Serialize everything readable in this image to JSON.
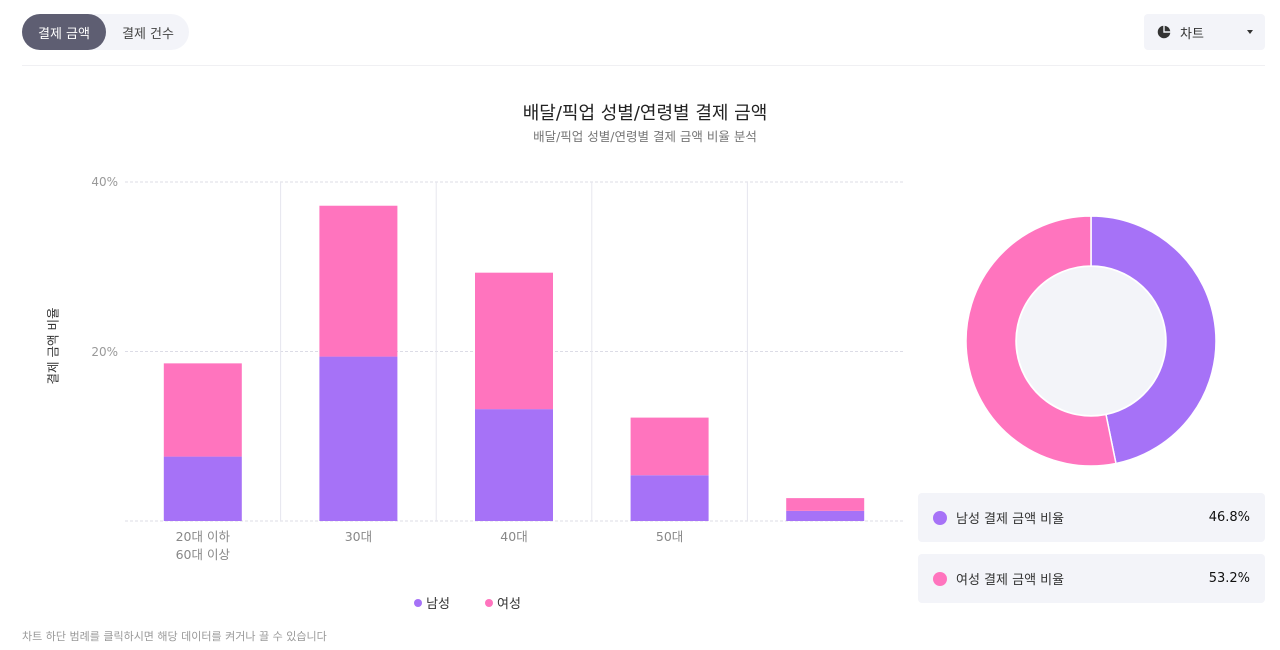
{
  "toggle": {
    "options": [
      {
        "label": "결제 금액",
        "active": true
      },
      {
        "label": "결제 건수",
        "active": false
      }
    ]
  },
  "chart_selector": {
    "icon": "pie-chart-icon",
    "label": "차트"
  },
  "colors": {
    "male": "#a672f7",
    "female": "#ff74be",
    "grid": "#dcdce6",
    "donut_hole": "#f3f4f9"
  },
  "chart_data": [
    {
      "type": "bar",
      "stacked": true,
      "title": "배달/픽업 성별/연령별 결제 금액",
      "subtitle": "배달/픽업 성별/연령별 결제 금액 비율 분석",
      "xlabel": "",
      "ylabel": "결제 금액 비율",
      "ylim": [
        0,
        40
      ],
      "yticks": [
        "20%",
        "40%"
      ],
      "grid": true,
      "legend_position": "bottom",
      "categories": [
        "20대 이하\n60대 이상",
        "30대",
        "40대",
        "50대",
        ""
      ],
      "category_lines": [
        [
          "20대 이하",
          "60대 이상"
        ],
        [
          "30대"
        ],
        [
          "40대"
        ],
        [
          "50대"
        ],
        []
      ],
      "series": [
        {
          "name": "남성",
          "color": "#a672f7",
          "values": [
            7.6,
            19.4,
            13.2,
            5.4,
            1.2
          ]
        },
        {
          "name": "여성",
          "color": "#ff74be",
          "values": [
            11.0,
            17.8,
            16.1,
            6.8,
            1.5
          ]
        }
      ]
    },
    {
      "type": "pie",
      "donut": true,
      "labels": [
        "남성 결제 금액 비율",
        "여성 결제 금액 비율"
      ],
      "values": [
        46.8,
        53.2
      ],
      "colors": [
        "#a672f7",
        "#ff74be"
      ]
    }
  ],
  "legend": [
    {
      "label": "남성",
      "color": "#a672f7"
    },
    {
      "label": "여성",
      "color": "#ff74be"
    }
  ],
  "stats": [
    {
      "label": "남성 결제 금액 비율",
      "value": "46.8%",
      "color": "#a672f7"
    },
    {
      "label": "여성 결제 금액 비율",
      "value": "53.2%",
      "color": "#ff74be"
    }
  ],
  "footnote": "차트 하단 범례를 클릭하시면 해당 데이터를 켜거나 끌 수 있습니다"
}
